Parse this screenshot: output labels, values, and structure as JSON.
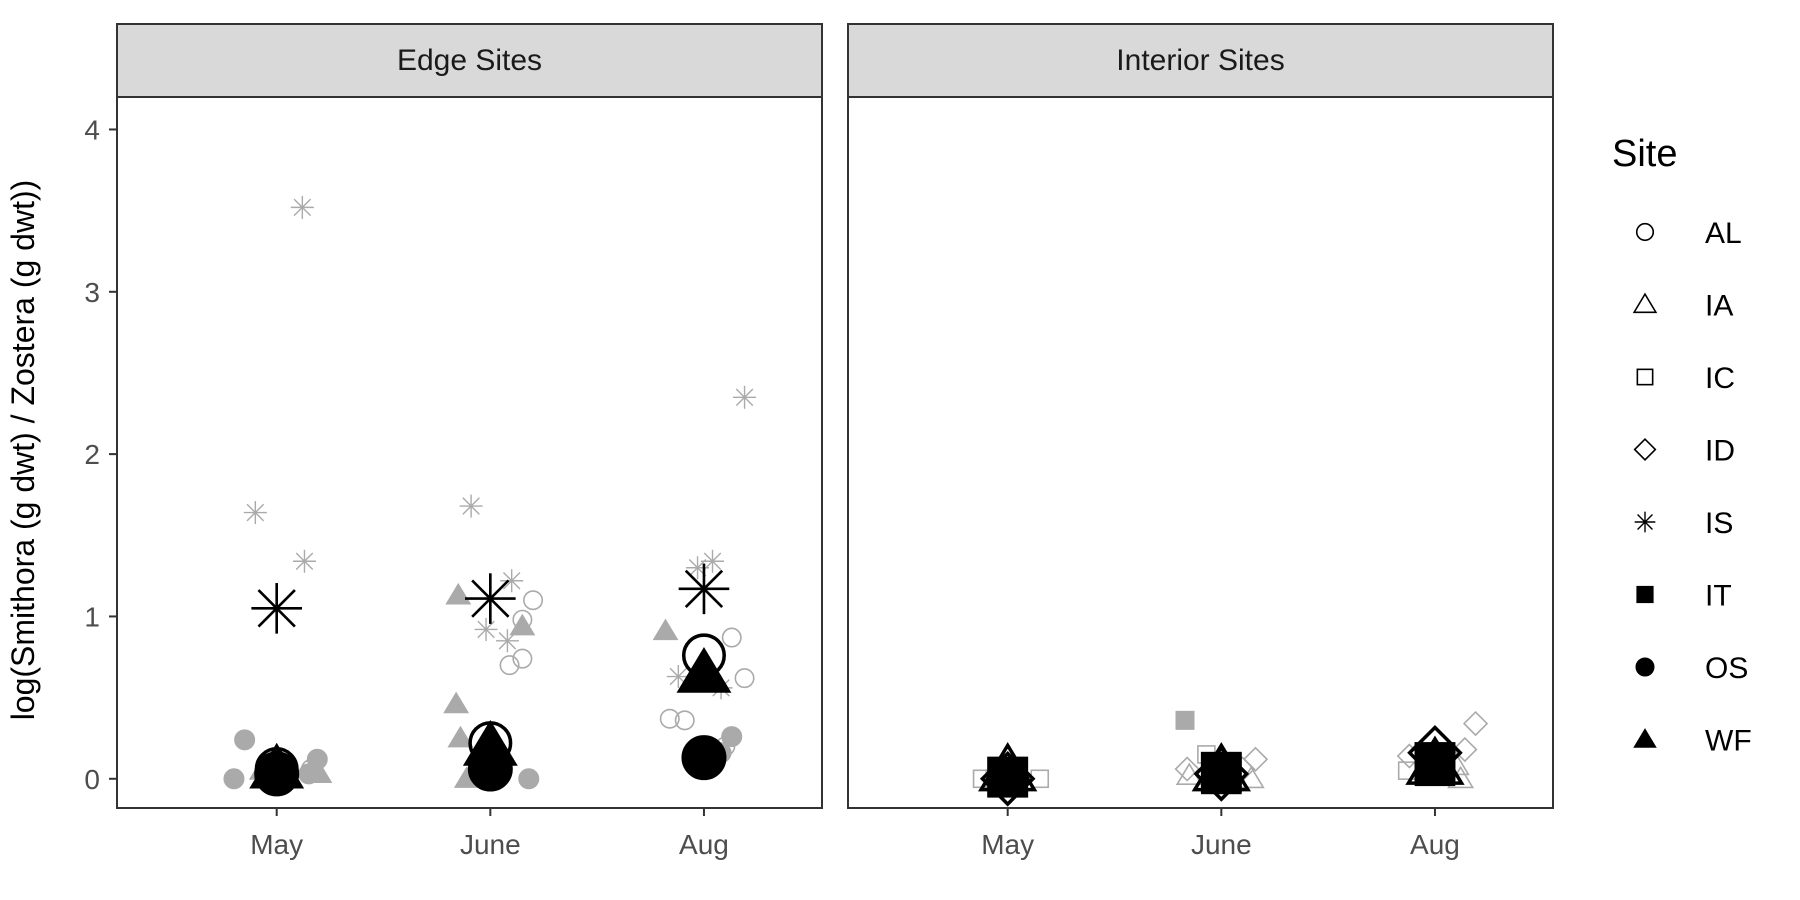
{
  "chart_data": {
    "type": "scatter",
    "ylabel": "log(Smithora (g dwt) / Zostera (g dwt))",
    "xlabel": "",
    "ylim": [
      -0.18,
      4.2
    ],
    "yticks": [
      0,
      1,
      2,
      3,
      4
    ],
    "categories": [
      "May",
      "June",
      "Aug"
    ],
    "facets": [
      "Edge Sites",
      "Interior Sites"
    ],
    "legend": {
      "title": "Site",
      "position": "right",
      "entries": [
        {
          "label": "AL",
          "shape": "circle-open"
        },
        {
          "label": "IA",
          "shape": "triangle-open"
        },
        {
          "label": "IC",
          "shape": "square-open"
        },
        {
          "label": "ID",
          "shape": "diamond-open"
        },
        {
          "label": "IS",
          "shape": "asterisk"
        },
        {
          "label": "IT",
          "shape": "square-filled"
        },
        {
          "label": "OS",
          "shape": "circle-filled"
        },
        {
          "label": "WF",
          "shape": "triangle-filled"
        }
      ]
    },
    "colors": {
      "raw": "#aaaaaa",
      "mean": "#000000",
      "strip_fill": "#d9d9d9",
      "border": "#333333"
    },
    "raw_points": {
      "Edge Sites": [
        {
          "site": "IS",
          "month": "May",
          "x": 0.12,
          "y": 3.52
        },
        {
          "site": "IS",
          "month": "May",
          "x": -0.1,
          "y": 1.64
        },
        {
          "site": "IS",
          "month": "May",
          "x": 0.13,
          "y": 1.34
        },
        {
          "site": "OS",
          "month": "May",
          "x": -0.15,
          "y": 0.24
        },
        {
          "site": "OS",
          "month": "May",
          "x": 0.19,
          "y": 0.12
        },
        {
          "site": "OS",
          "month": "May",
          "x": -0.2,
          "y": 0.0
        },
        {
          "site": "OS",
          "month": "May",
          "x": 0.15,
          "y": 0.03
        },
        {
          "site": "AL",
          "month": "May",
          "x": 0.16,
          "y": 0.06
        },
        {
          "site": "AL",
          "month": "May",
          "x": 0.04,
          "y": 0.02
        },
        {
          "site": "WF",
          "month": "May",
          "x": -0.07,
          "y": 0.05
        },
        {
          "site": "WF",
          "month": "May",
          "x": 0.2,
          "y": 0.03
        },
        {
          "site": "IS",
          "month": "June",
          "x": -0.09,
          "y": 1.68
        },
        {
          "site": "IS",
          "month": "June",
          "x": 0.1,
          "y": 1.22
        },
        {
          "site": "IS",
          "month": "June",
          "x": -0.02,
          "y": 0.92
        },
        {
          "site": "IS",
          "month": "June",
          "x": 0.08,
          "y": 0.85
        },
        {
          "site": "AL",
          "month": "June",
          "x": 0.2,
          "y": 1.1
        },
        {
          "site": "AL",
          "month": "June",
          "x": 0.15,
          "y": 0.98
        },
        {
          "site": "AL",
          "month": "June",
          "x": 0.15,
          "y": 0.74
        },
        {
          "site": "AL",
          "month": "June",
          "x": 0.09,
          "y": 0.7
        },
        {
          "site": "AL",
          "month": "June",
          "x": 0.18,
          "y": 0.0
        },
        {
          "site": "WF",
          "month": "June",
          "x": -0.15,
          "y": 1.13
        },
        {
          "site": "WF",
          "month": "June",
          "x": 0.15,
          "y": 0.94
        },
        {
          "site": "WF",
          "month": "June",
          "x": -0.16,
          "y": 0.46
        },
        {
          "site": "WF",
          "month": "June",
          "x": -0.14,
          "y": 0.25
        },
        {
          "site": "WF",
          "month": "June",
          "x": -0.11,
          "y": 0.0
        },
        {
          "site": "OS",
          "month": "June",
          "x": 0.18,
          "y": 0.0
        },
        {
          "site": "OS",
          "month": "June",
          "x": -0.02,
          "y": 0.02
        },
        {
          "site": "IS",
          "month": "Aug",
          "x": -0.03,
          "y": 1.3
        },
        {
          "site": "IS",
          "month": "Aug",
          "x": 0.04,
          "y": 1.34
        },
        {
          "site": "IS",
          "month": "Aug",
          "x": -0.12,
          "y": 0.63
        },
        {
          "site": "IS",
          "month": "Aug",
          "x": 0.08,
          "y": 0.56
        },
        {
          "site": "IS",
          "month": "Aug",
          "x": 0.19,
          "y": 2.35
        },
        {
          "site": "AL",
          "month": "Aug",
          "x": 0.13,
          "y": 0.87
        },
        {
          "site": "AL",
          "month": "Aug",
          "x": 0.19,
          "y": 0.62
        },
        {
          "site": "AL",
          "month": "Aug",
          "x": -0.16,
          "y": 0.37
        },
        {
          "site": "AL",
          "month": "Aug",
          "x": -0.09,
          "y": 0.36
        },
        {
          "site": "AL",
          "month": "Aug",
          "x": 0.1,
          "y": 0.2
        },
        {
          "site": "WF",
          "month": "Aug",
          "x": -0.18,
          "y": 0.91
        },
        {
          "site": "OS",
          "month": "Aug",
          "x": 0.13,
          "y": 0.26
        },
        {
          "site": "OS",
          "month": "Aug",
          "x": 0.08,
          "y": 0.16
        }
      ],
      "Interior Sites": [
        {
          "site": "IC",
          "month": "May",
          "x": 0.15,
          "y": 0.0
        },
        {
          "site": "IC",
          "month": "May",
          "x": -0.12,
          "y": 0.0
        },
        {
          "site": "IT",
          "month": "May",
          "x": -0.06,
          "y": 0.0
        },
        {
          "site": "IT",
          "month": "June",
          "x": -0.17,
          "y": 0.36
        },
        {
          "site": "ID",
          "month": "June",
          "x": -0.16,
          "y": 0.06
        },
        {
          "site": "ID",
          "month": "June",
          "x": -0.02,
          "y": 0.1
        },
        {
          "site": "ID",
          "month": "June",
          "x": 0.1,
          "y": 0.06
        },
        {
          "site": "ID",
          "month": "June",
          "x": 0.16,
          "y": 0.12
        },
        {
          "site": "IC",
          "month": "June",
          "x": -0.07,
          "y": 0.15
        },
        {
          "site": "IA",
          "month": "June",
          "x": 0.14,
          "y": 0.0
        },
        {
          "site": "IA",
          "month": "June",
          "x": -0.15,
          "y": 0.02
        },
        {
          "site": "ID",
          "month": "Aug",
          "x": -0.12,
          "y": 0.14
        },
        {
          "site": "ID",
          "month": "Aug",
          "x": 0.14,
          "y": 0.18
        },
        {
          "site": "ID",
          "month": "Aug",
          "x": 0.19,
          "y": 0.34
        },
        {
          "site": "IC",
          "month": "Aug",
          "x": -0.13,
          "y": 0.05
        },
        {
          "site": "IA",
          "month": "Aug",
          "x": 0.1,
          "y": 0.08
        },
        {
          "site": "IA",
          "month": "Aug",
          "x": 0.12,
          "y": 0.0
        }
      ]
    },
    "mean_points": {
      "Edge Sites": [
        {
          "site": "IS",
          "month": "May",
          "y": 1.05
        },
        {
          "site": "AL",
          "month": "May",
          "y": 0.06
        },
        {
          "site": "OS",
          "month": "May",
          "y": 0.03
        },
        {
          "site": "WF",
          "month": "May",
          "y": 0.06
        },
        {
          "site": "IS",
          "month": "June",
          "y": 1.11
        },
        {
          "site": "AL",
          "month": "June",
          "y": 0.22
        },
        {
          "site": "OS",
          "month": "June",
          "y": 0.06
        },
        {
          "site": "WF",
          "month": "June",
          "y": 0.2
        },
        {
          "site": "IS",
          "month": "Aug",
          "y": 1.17
        },
        {
          "site": "AL",
          "month": "Aug",
          "y": 0.76
        },
        {
          "site": "WF",
          "month": "Aug",
          "y": 0.65
        },
        {
          "site": "OS",
          "month": "Aug",
          "y": 0.13
        }
      ],
      "Interior Sites": [
        {
          "site": "IA",
          "month": "May",
          "y": 0.05
        },
        {
          "site": "ID",
          "month": "May",
          "y": 0.0
        },
        {
          "site": "IC",
          "month": "May",
          "y": 0.01
        },
        {
          "site": "IT",
          "month": "May",
          "y": 0.01
        },
        {
          "site": "IA",
          "month": "June",
          "y": 0.05
        },
        {
          "site": "ID",
          "month": "June",
          "y": 0.03
        },
        {
          "site": "IC",
          "month": "June",
          "y": 0.04
        },
        {
          "site": "IT",
          "month": "June",
          "y": 0.03
        },
        {
          "site": "ID",
          "month": "Aug",
          "y": 0.16
        },
        {
          "site": "IA",
          "month": "Aug",
          "y": 0.09
        },
        {
          "site": "IC",
          "month": "Aug",
          "y": 0.1
        },
        {
          "site": "IT",
          "month": "Aug",
          "y": 0.08
        }
      ]
    }
  }
}
